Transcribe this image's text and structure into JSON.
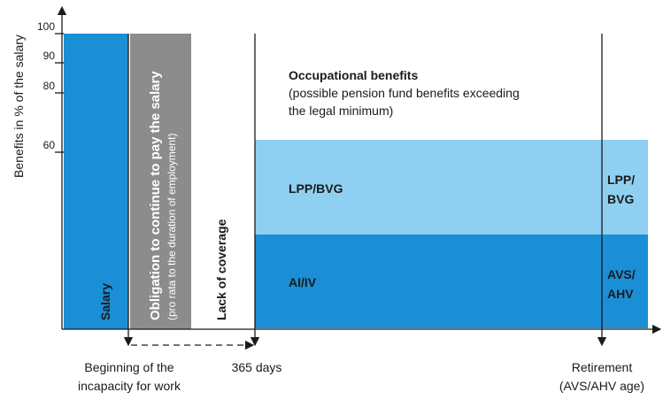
{
  "axis": {
    "y_label": "Benefits in % of the salary",
    "ticks": [
      "100",
      "90",
      "80",
      "60"
    ]
  },
  "blocks": {
    "salary": "Salary",
    "obligation": "Obligation to continue to pay the salary",
    "obligation_note": "(pro rata to the duration of employment)",
    "lack": "Lack of coverage",
    "lpp": "LPP/BVG",
    "ai": "AI/IV",
    "lpp_retired_1": "LPP/",
    "lpp_retired_2": "BVG",
    "avs_1": "AVS/",
    "avs_2": "AHV"
  },
  "occupational": {
    "title": "Occupational benefits",
    "line1": "(possible pension fund benefits exceeding",
    "line2": "the legal minimum)"
  },
  "timeline": {
    "start_1": "Beginning of the",
    "start_2": "incapacity for work",
    "days": "365 days",
    "retire_1": "Retirement",
    "retire_2": "(AVS/AHV age)"
  }
}
